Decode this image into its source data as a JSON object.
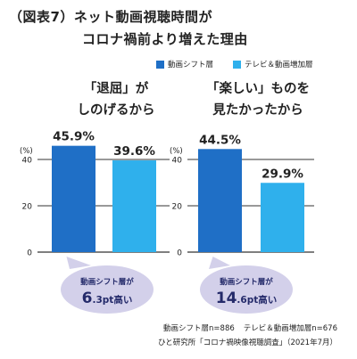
{
  "title": {
    "line1": "（図表7）ネット動画視聴時間が",
    "line2": "コロナ禍前より増えた理由"
  },
  "colors": {
    "shift": "#1f6fc6",
    "tv": "#2fb0ec",
    "callout": "#d3d0ea",
    "callout_text": "#242a6a"
  },
  "legend": [
    {
      "label": "動画シフト層"
    },
    {
      "label": "テレビ＆動画増加層"
    }
  ],
  "chart_data": [
    {
      "type": "bar",
      "subtitle_line1": "「退屈」が",
      "subtitle_line2": "しのげるから",
      "unit_label": "(%)",
      "yticks": [
        "40",
        "20",
        "0"
      ],
      "ylim": [
        0,
        48
      ],
      "series": [
        {
          "name": "動画シフト層",
          "values": [
            45.9
          ],
          "labels": [
            "45.9%"
          ]
        },
        {
          "name": "テレビ＆動画増加層",
          "values": [
            39.6
          ],
          "labels": [
            "39.6%"
          ]
        }
      ],
      "callout": {
        "line1": "動画シフト層が",
        "big": "6",
        "rest": ".3pt高い"
      }
    },
    {
      "type": "bar",
      "subtitle_line1": "「楽しい」ものを",
      "subtitle_line2": "見たかったから",
      "unit_label": "(%)",
      "yticks": [
        "40",
        "20",
        "0"
      ],
      "ylim": [
        0,
        48
      ],
      "series": [
        {
          "name": "動画シフト層",
          "values": [
            44.5
          ],
          "labels": [
            "44.5%"
          ]
        },
        {
          "name": "テレビ＆動画増加層",
          "values": [
            29.9
          ],
          "labels": [
            "29.9%"
          ]
        }
      ],
      "callout": {
        "line1": "動画シフト層が",
        "big": "14",
        "rest": ".6pt高い"
      }
    }
  ],
  "footnote": {
    "shift_label": "動画シフト層n=886",
    "tv_label": "テレビ＆動画増加層n=676",
    "source": "ひと研究所「コロナ禍映像視聴調査」（2021年7月）"
  }
}
